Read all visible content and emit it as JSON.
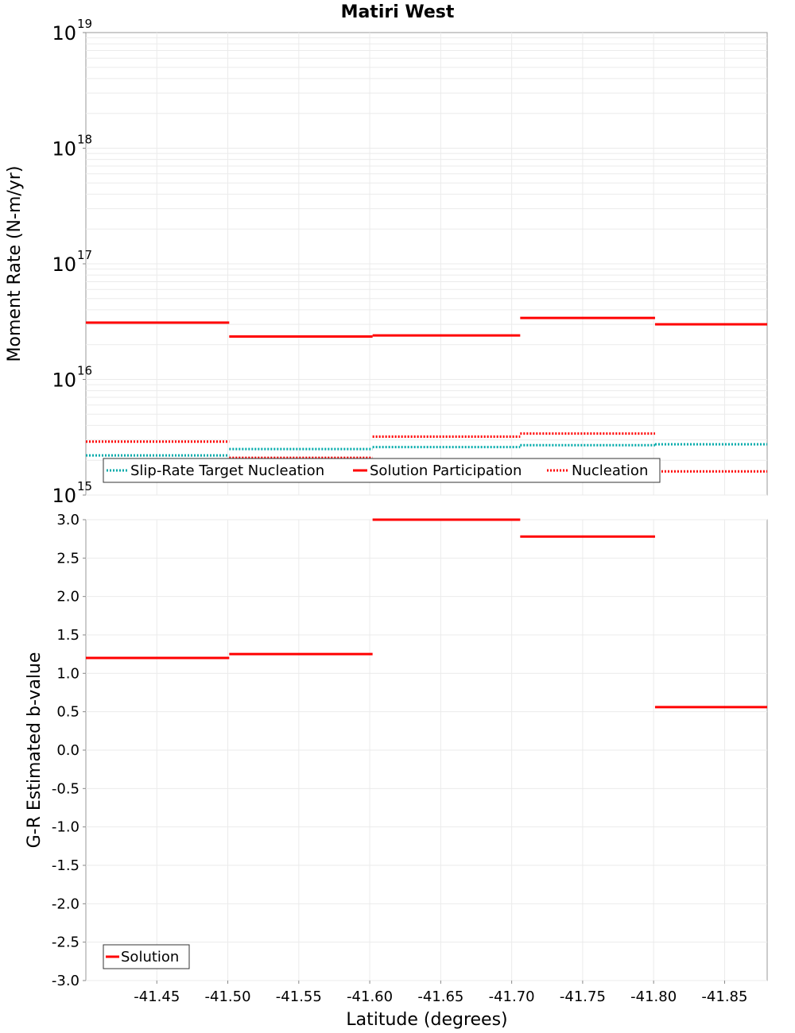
{
  "chart_data": {
    "type": "line",
    "title": "Matiri West",
    "xlabel": "Latitude (degrees)",
    "x_range": [
      -41.4,
      -41.88
    ],
    "x_ticks": [
      "-41.45",
      "-41.50",
      "-41.55",
      "-41.60",
      "-41.65",
      "-41.70",
      "-41.75",
      "-41.80",
      "-41.85"
    ],
    "segment_bounds": [
      -41.4,
      -41.501,
      -41.602,
      -41.706,
      -41.801,
      -41.88
    ],
    "panels": [
      {
        "ylabel": "Moment Rate (N-m/yr)",
        "yscale": "log",
        "ylim": [
          1000000000000000.0,
          1e+19
        ],
        "y_tick_bases": [
          "10",
          "10",
          "10",
          "10",
          "10"
        ],
        "y_tick_exponents": [
          "15",
          "16",
          "17",
          "18",
          "19"
        ],
        "series": [
          {
            "name": "Slip-Rate Target Nucleation",
            "style": "dotted",
            "color": "#00aaaa",
            "values": [
              2200000000000000.0,
              2500000000000000.0,
              2600000000000000.0,
              2700000000000000.0,
              2750000000000000.0
            ]
          },
          {
            "name": "Solution Participation",
            "style": "solid",
            "color": "#ff0000",
            "values": [
              3.1e+16,
              2.35e+16,
              2.4e+16,
              3.4e+16,
              3e+16
            ]
          },
          {
            "name": "Nucleation",
            "style": "dotted",
            "color": "#ff0000",
            "values": [
              2900000000000000.0,
              2100000000000000.0,
              3200000000000000.0,
              3400000000000000.0,
              1600000000000000.0
            ]
          }
        ],
        "legend_position": "bottom-left"
      },
      {
        "ylabel": "G-R Estimated b-value",
        "yscale": "linear",
        "ylim": [
          -3.0,
          3.0
        ],
        "y_ticks": [
          "-3.0",
          "-2.5",
          "-2.0",
          "-1.5",
          "-1.0",
          "-0.5",
          "0.0",
          "0.5",
          "1.0",
          "1.5",
          "2.0",
          "2.5",
          "3.0"
        ],
        "series": [
          {
            "name": "Solution",
            "style": "solid",
            "color": "#ff0000",
            "values": [
              1.2,
              1.25,
              3.0,
              2.78,
              0.56
            ]
          }
        ],
        "legend_position": "bottom-left"
      }
    ]
  }
}
